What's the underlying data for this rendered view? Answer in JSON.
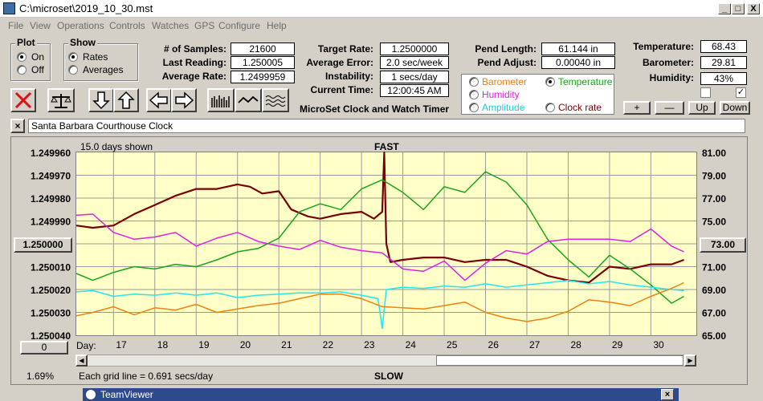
{
  "window": {
    "title": "C:\\microset\\2019_10_30.mst",
    "controls": [
      "_",
      "□",
      "X"
    ]
  },
  "menu": [
    "File",
    "View",
    "Operations",
    "Controls",
    "Watches",
    "GPS",
    "Configure",
    "Help"
  ],
  "plot_group": {
    "title": "Plot",
    "options": [
      "On",
      "Off"
    ],
    "selected": "On"
  },
  "show_group": {
    "title": "Show",
    "options": [
      "Rates",
      "Averages"
    ],
    "selected": "Rates"
  },
  "stats": {
    "samples_label": "# of Samples:",
    "samples": "21600",
    "last_label": "Last Reading:",
    "last": "1.250005",
    "avg_label": "Average Rate:",
    "avg": "1.2499959",
    "target_label": "Target Rate:",
    "target": "1.2500000",
    "error_label": "Average Error:",
    "error": "2.0 sec/week",
    "instab_label": "Instability:",
    "instab": "1 secs/day",
    "time_label": "Current Time:",
    "time": "12:00:45 AM",
    "pend_len_label": "Pend Length:",
    "pend_len": "61.144 in",
    "pend_adj_label": "Pend Adjust:",
    "pend_adj": "0.00040 in",
    "temp_label": "Temperature:",
    "temp": "68.43",
    "baro_label": "Barometer:",
    "baro": "29.81",
    "hum_label": "Humidity:",
    "hum": "43%"
  },
  "app_caption": "MicroSet Clock and Watch Timer",
  "sensor_group": {
    "barometer": "Barometer",
    "temperature": "Temperature",
    "humidity": "Humidity",
    "amplitude": "Amplitude",
    "clock_rate": "Clock rate",
    "selected": "Temperature"
  },
  "adjust_buttons": [
    "+",
    "—",
    "Up",
    "Down"
  ],
  "clock_name": "Santa Barbara Courthouse Clock",
  "left_side": {
    "center_value": "1.250000",
    "bottom_value": "0",
    "percent": "1.69%"
  },
  "right_side": {
    "center_value": "73.00"
  },
  "footer": {
    "days_label": "Day:",
    "grid_note": "Each grid line = 0.691 secs/day",
    "slow": "SLOW"
  },
  "teamviewer": "TeamViewer",
  "colors": {
    "rate": "#7a0000",
    "temperature": "#1aa51a",
    "humidity": "#e020e0",
    "amplitude": "#20e8f0",
    "barometer": "#f08010",
    "plot_bg": "#ffffc8"
  },
  "chart_data": {
    "type": "line",
    "title": "FAST",
    "subtitle": "15.0 days shown",
    "xlabel": "Day:",
    "x_ticks": [
      17,
      18,
      19,
      20,
      21,
      22,
      23,
      24,
      25,
      26,
      27,
      28,
      29,
      30
    ],
    "xlim": [
      16.1,
      31.1
    ],
    "y_left_ticks": [
      "1.249960",
      "1.249970",
      "1.249980",
      "1.249990",
      "1.250000",
      "1.250010",
      "1.250020",
      "1.250030",
      "1.250040"
    ],
    "ylim_left": [
      1.24996,
      1.25004
    ],
    "y_right_ticks": [
      "81.00",
      "79.00",
      "77.00",
      "75.00",
      "73.00",
      "71.00",
      "69.00",
      "67.00",
      "65.00"
    ],
    "ylim_right": [
      65,
      81
    ],
    "series": [
      {
        "color": "#7a0000",
        "axis": "left",
        "x": [
          16.1,
          16.5,
          17.0,
          17.5,
          18.0,
          18.5,
          19.0,
          19.5,
          20.0,
          20.3,
          20.6,
          21.0,
          21.3,
          21.7,
          22.0,
          22.5,
          23.0,
          23.3,
          23.5,
          23.55,
          23.6,
          23.7,
          24.0,
          24.5,
          25.0,
          25.5,
          26.0,
          26.5,
          27.0,
          27.5,
          28.0,
          28.5,
          29.0,
          29.5,
          30.0,
          30.5,
          30.8
        ],
        "y": [
          1.249992,
          1.249993,
          1.249992,
          1.249987,
          1.249983,
          1.249979,
          1.249976,
          1.249976,
          1.249974,
          1.249975,
          1.249978,
          1.249977,
          1.249985,
          1.249988,
          1.249989,
          1.249987,
          1.249986,
          1.249989,
          1.249986,
          1.24996,
          1.25,
          1.250008,
          1.250007,
          1.250006,
          1.250006,
          1.250008,
          1.250007,
          1.250007,
          1.25001,
          1.250014,
          1.250016,
          1.250017,
          1.25001,
          1.250011,
          1.250009,
          1.250009,
          1.250007
        ]
      },
      {
        "color": "#1aa51a",
        "axis": "right",
        "x": [
          16.1,
          16.5,
          17.0,
          17.5,
          18.0,
          18.5,
          19.0,
          19.5,
          20.0,
          20.5,
          21.0,
          21.5,
          22.0,
          22.5,
          23.0,
          23.5,
          24.0,
          24.5,
          25.0,
          25.5,
          26.0,
          26.5,
          27.0,
          27.5,
          28.0,
          28.5,
          29.0,
          29.5,
          30.0,
          30.5,
          30.8
        ],
        "y": [
          70.4,
          69.8,
          70.5,
          71.0,
          70.8,
          71.2,
          71.0,
          71.6,
          72.3,
          72.6,
          73.5,
          75.8,
          76.5,
          76.0,
          77.8,
          78.6,
          77.5,
          76.0,
          78.0,
          77.5,
          79.3,
          78.4,
          76.4,
          73.4,
          71.6,
          70.1,
          72.0,
          70.8,
          69.4,
          67.8,
          68.4
        ]
      },
      {
        "color": "#e020e0",
        "axis": "right",
        "x": [
          16.1,
          16.5,
          17.0,
          17.5,
          18.0,
          18.5,
          19.0,
          19.5,
          20.0,
          20.5,
          21.0,
          21.5,
          22.0,
          22.5,
          23.0,
          23.5,
          24.0,
          24.5,
          25.0,
          25.5,
          26.0,
          26.5,
          27.0,
          27.5,
          28.0,
          28.5,
          29.0,
          29.5,
          30.0,
          30.5,
          30.8
        ],
        "y": [
          75.5,
          75.6,
          74.0,
          73.4,
          73.6,
          74.0,
          72.8,
          73.5,
          74.0,
          73.2,
          72.8,
          72.5,
          73.3,
          72.7,
          72.4,
          72.2,
          70.8,
          70.6,
          71.5,
          69.8,
          71.3,
          72.4,
          72.1,
          73.2,
          73.4,
          73.4,
          73.4,
          73.2,
          74.3,
          72.8,
          72.3
        ]
      },
      {
        "color": "#20e8f0",
        "axis": "right",
        "x": [
          16.1,
          16.5,
          17.0,
          17.5,
          18.0,
          18.5,
          19.0,
          19.5,
          20.0,
          20.5,
          21.0,
          21.5,
          22.0,
          22.5,
          23.0,
          23.4,
          23.5,
          23.6,
          24.0,
          24.5,
          25.0,
          25.5,
          26.0,
          26.5,
          27.0,
          27.5,
          28.0,
          28.5,
          29.0,
          29.5,
          30.0,
          30.5,
          30.8
        ],
        "y": [
          68.8,
          68.9,
          68.4,
          68.6,
          68.5,
          68.7,
          68.5,
          68.7,
          68.3,
          68.5,
          68.6,
          68.7,
          68.7,
          68.8,
          68.5,
          68.2,
          65.6,
          69.0,
          69.2,
          69.1,
          69.3,
          69.2,
          69.5,
          69.2,
          69.4,
          69.6,
          69.8,
          69.5,
          69.7,
          69.4,
          69.2,
          69.0,
          68.9
        ]
      },
      {
        "color": "#f08010",
        "axis": "right",
        "x": [
          16.1,
          16.5,
          17.0,
          17.5,
          18.0,
          18.5,
          19.0,
          19.5,
          20.0,
          20.5,
          21.0,
          21.5,
          22.0,
          22.5,
          23.0,
          23.5,
          24.0,
          24.5,
          25.0,
          25.5,
          26.0,
          26.5,
          27.0,
          27.5,
          28.0,
          28.5,
          29.0,
          29.5,
          30.0,
          30.5,
          30.8
        ],
        "y": [
          66.7,
          67.0,
          67.5,
          66.8,
          67.4,
          67.2,
          67.7,
          67.0,
          67.3,
          67.6,
          67.8,
          68.2,
          68.6,
          68.6,
          68.2,
          67.5,
          67.4,
          67.3,
          67.6,
          67.9,
          67.0,
          66.5,
          66.2,
          66.5,
          67.1,
          68.1,
          67.9,
          67.6,
          68.4,
          69.1,
          69.6
        ]
      }
    ]
  }
}
